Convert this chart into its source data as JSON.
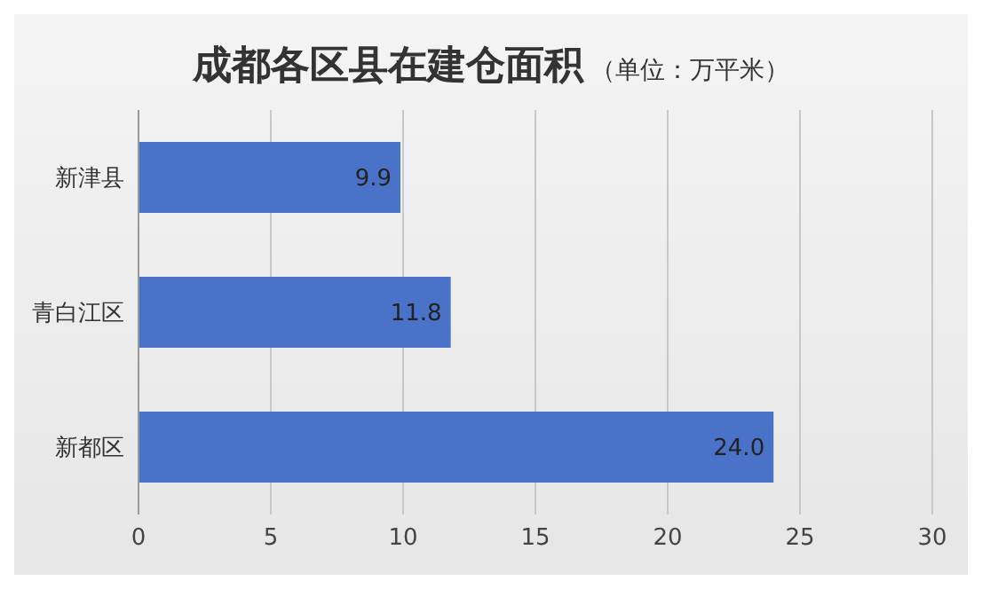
{
  "chart_data": {
    "type": "bar",
    "orientation": "horizontal",
    "title": "成都各区县在建仓面积",
    "subtitle": "（单位：万平米）",
    "categories": [
      "新津县",
      "青白江区",
      "新都区"
    ],
    "values": [
      9.9,
      11.8,
      24.0
    ],
    "color": "#4a72c8",
    "value_labels": [
      "9.9",
      "11.8",
      "24.0"
    ],
    "xlim": [
      0,
      30
    ],
    "xticks": [
      0,
      5,
      10,
      15,
      20,
      25,
      30
    ],
    "grid": "x"
  }
}
